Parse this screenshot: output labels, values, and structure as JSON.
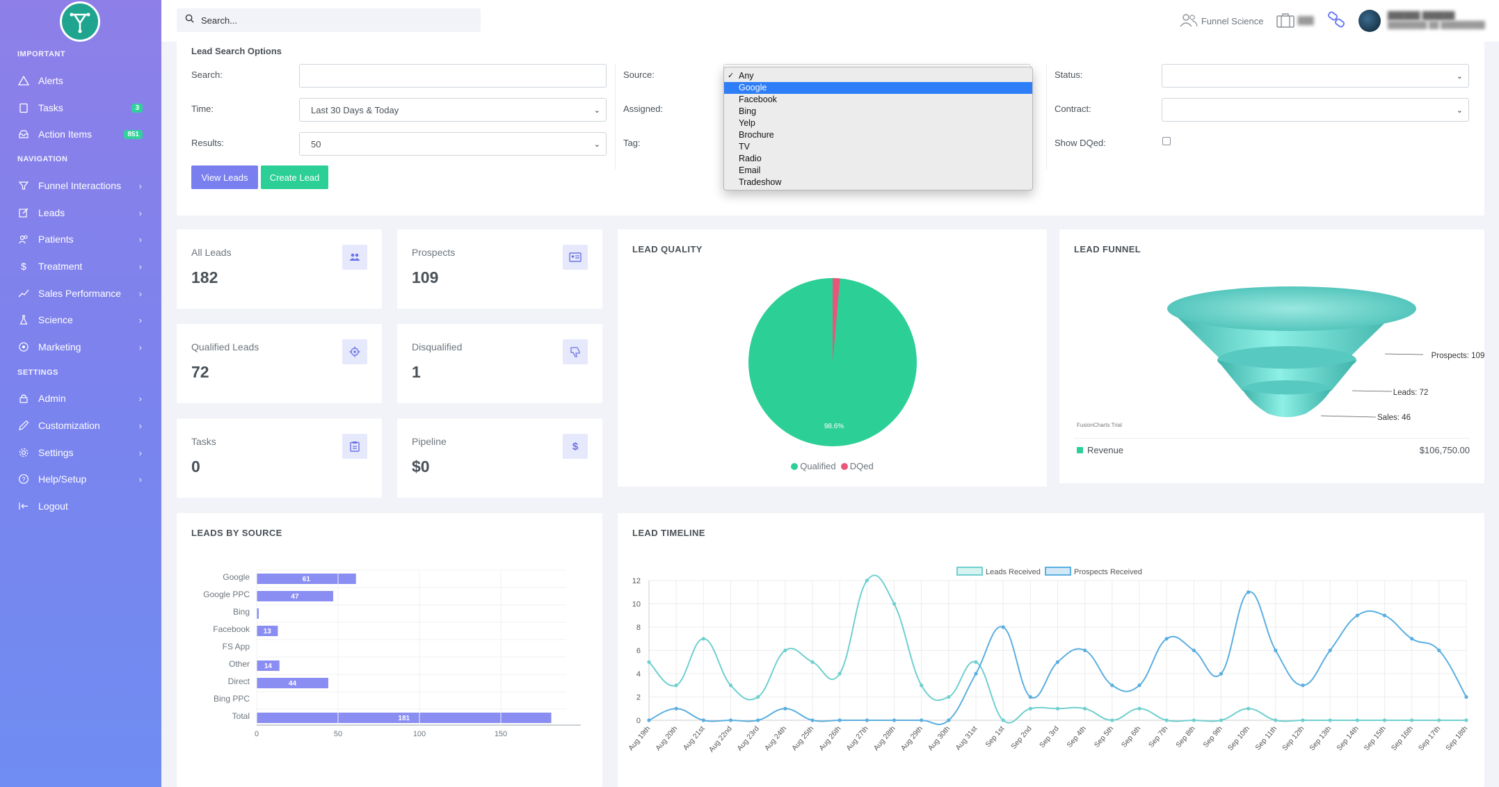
{
  "sidebar": {
    "sections": {
      "important": "IMPORTANT",
      "navigation": "NAVIGATION",
      "settings": "SETTINGS"
    },
    "items": [
      {
        "label": "Alerts",
        "icon": "warning-icon"
      },
      {
        "label": "Tasks",
        "icon": "clipboard-icon",
        "badge": "3"
      },
      {
        "label": "Action Items",
        "icon": "inbox-icon",
        "badge": "851"
      },
      {
        "label": "Funnel Interactions",
        "icon": "funnel-icon"
      },
      {
        "label": "Leads",
        "icon": "edit-icon"
      },
      {
        "label": "Patients",
        "icon": "users-icon"
      },
      {
        "label": "Treatment",
        "icon": "dollar-icon"
      },
      {
        "label": "Sales Performance",
        "icon": "trend-icon"
      },
      {
        "label": "Science",
        "icon": "flask-icon"
      },
      {
        "label": "Marketing",
        "icon": "target-icon"
      },
      {
        "label": "Admin",
        "icon": "lock-icon"
      },
      {
        "label": "Customization",
        "icon": "pencil-icon"
      },
      {
        "label": "Settings",
        "icon": "gear-icon"
      },
      {
        "label": "Help/Setup",
        "icon": "help-icon"
      },
      {
        "label": "Logout",
        "icon": "logout-icon"
      }
    ]
  },
  "header": {
    "search_placeholder": "Search...",
    "brand_link": "Funnel Science"
  },
  "search_options": {
    "title": "Lead Search Options",
    "search_label": "Search:",
    "search_value": "",
    "time_label": "Time:",
    "time_value": "Last 30 Days & Today",
    "results_label": "Results:",
    "results_value": "50",
    "source_label": "Source:",
    "assigned_label": "Assigned:",
    "tag_label": "Tag:",
    "status_label": "Status:",
    "contract_label": "Contract:",
    "show_dqed_label": "Show DQed:",
    "view_leads": "View Leads",
    "create_lead": "Create Lead",
    "source_options": [
      "Any",
      "Google",
      "Facebook",
      "Bing",
      "Yelp",
      "Brochure",
      "TV",
      "Radio",
      "Email",
      "Tradeshow"
    ],
    "source_checked": "Any",
    "source_highlighted": "Google"
  },
  "stats": [
    {
      "label": "All Leads",
      "value": "182",
      "icon": "users-icon"
    },
    {
      "label": "Prospects",
      "value": "109",
      "icon": "id-card-icon"
    },
    {
      "label": "Qualified Leads",
      "value": "72",
      "icon": "crosshair-icon"
    },
    {
      "label": "Disqualified",
      "value": "1",
      "icon": "thumbs-down-icon"
    },
    {
      "label": "Tasks",
      "value": "0",
      "icon": "clipboard-icon"
    },
    {
      "label": "Pipeline",
      "value": "$0",
      "icon": "dollar-icon"
    }
  ],
  "lead_quality": {
    "title": "LEAD QUALITY",
    "label_qualified": "Qualified",
    "label_dqed": "DQed",
    "slice_label": "98.6%"
  },
  "lead_funnel": {
    "title": "LEAD FUNNEL",
    "label_prospects": "Prospects: 109",
    "label_leads": "Leads: 72",
    "label_sales": "Sales: 46",
    "trial_text": "FusionCharts Trial",
    "revenue_label": "Revenue",
    "revenue_value": "$106,750.00"
  },
  "leads_by_source": {
    "title": "LEADS BY SOURCE"
  },
  "lead_timeline": {
    "title": "LEAD TIMELINE"
  },
  "chart_data": [
    {
      "type": "pie",
      "title": "LEAD QUALITY",
      "categories": [
        "Qualified",
        "DQed"
      ],
      "values": [
        98.6,
        1.4
      ],
      "colors": [
        "#2ccf95",
        "#e8577a"
      ],
      "legend": "bottom"
    },
    {
      "type": "funnel",
      "title": "LEAD FUNNEL",
      "categories": [
        "Prospects",
        "Leads",
        "Sales"
      ],
      "values": [
        109,
        72,
        46
      ],
      "color": "#5fd6cc"
    },
    {
      "type": "bar",
      "title": "LEADS BY SOURCE",
      "orientation": "horizontal",
      "categories": [
        "Google",
        "Google PPC",
        "Bing",
        "Facebook",
        "FS App",
        "Other",
        "Direct",
        "Bing PPC",
        "Total"
      ],
      "values": [
        61,
        47,
        1,
        13,
        0,
        14,
        44,
        0,
        181
      ],
      "data_labels": [
        "61",
        "47",
        "",
        "13",
        "",
        "14",
        "44",
        "",
        "181"
      ],
      "xlim": [
        0,
        200
      ],
      "xticks": [
        "0",
        "50",
        "100",
        "150"
      ],
      "color": "#8a8ef2"
    },
    {
      "type": "line",
      "title": "LEAD TIMELINE",
      "x": [
        "Aug 19th",
        "Aug 20th",
        "Aug 21st",
        "Aug 22nd",
        "Aug 23rd",
        "Aug 24th",
        "Aug 25th",
        "Aug 26th",
        "Aug 27th",
        "Aug 28th",
        "Aug 29th",
        "Aug 30th",
        "Aug 31st",
        "Sep 1st",
        "Sep 2nd",
        "Sep 3rd",
        "Sep 4th",
        "Sep 5th",
        "Sep 6th",
        "Sep 7th",
        "Sep 8th",
        "Sep 9th",
        "Sep 10th",
        "Sep 11th",
        "Sep 12th",
        "Sep 13th",
        "Sep 14th",
        "Sep 15th",
        "Sep 16th",
        "Sep 17th",
        "Sep 18th"
      ],
      "yticks": [
        "0",
        "2",
        "4",
        "6",
        "8",
        "10",
        "12"
      ],
      "ylim": [
        0,
        12
      ],
      "grid": true,
      "legend": "top",
      "series": [
        {
          "name": "Leads Received",
          "color": "#6fcfcf",
          "values": [
            5,
            3,
            7,
            3,
            2,
            6,
            5,
            4,
            12,
            10,
            3,
            2,
            5,
            0,
            1,
            1,
            1,
            0,
            1,
            0,
            0,
            0,
            1,
            0,
            0,
            0,
            0,
            0,
            0,
            0,
            0
          ]
        },
        {
          "name": "Prospects Received",
          "color": "#5aaee0",
          "values": [
            0,
            1,
            0,
            0,
            0,
            1,
            0,
            0,
            0,
            0,
            0,
            0,
            4,
            8,
            2,
            5,
            6,
            3,
            3,
            7,
            6,
            4,
            11,
            6,
            3,
            6,
            9,
            9,
            7,
            6,
            2
          ]
        }
      ]
    }
  ]
}
